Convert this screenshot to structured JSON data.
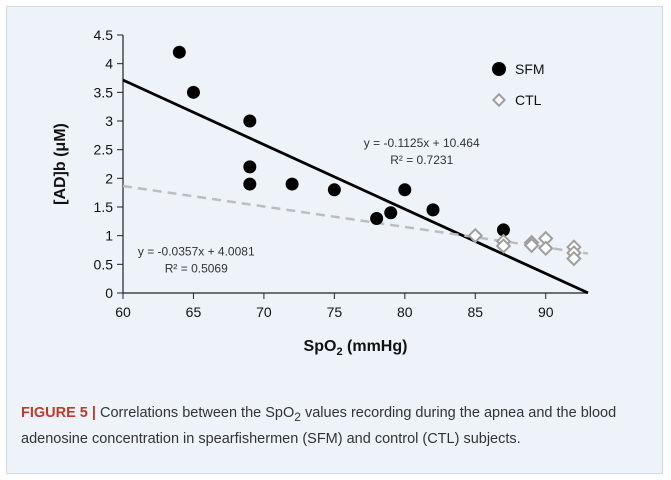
{
  "chart_data": {
    "type": "scatter",
    "xlabel": "SpO2 (mmHg)",
    "xlabel_main": "SpO",
    "xlabel_sub": "2",
    "xlabel_rest": " (mmHg)",
    "ylabel": "[AD]b (μM)",
    "xlim": [
      60,
      93
    ],
    "ylim": [
      0,
      4.5
    ],
    "x_ticks": [
      60,
      65,
      70,
      75,
      80,
      85,
      90
    ],
    "y_ticks": [
      0,
      0.5,
      1,
      1.5,
      2,
      2.5,
      3,
      3.5,
      4,
      4.5
    ],
    "x_tick_labels": [
      "60",
      "65",
      "70",
      "75",
      "80",
      "85",
      "90"
    ],
    "y_tick_labels": [
      "0",
      "0.5",
      "1",
      "1.5",
      "2",
      "2.5",
      "3",
      "3.5",
      "4",
      "4.5"
    ],
    "legend_position": "top-right",
    "series": [
      {
        "name": "SFM",
        "marker": "filled-circle",
        "color": "#000000",
        "points": [
          {
            "x": 64,
            "y": 4.2
          },
          {
            "x": 65,
            "y": 3.5
          },
          {
            "x": 69,
            "y": 3.0
          },
          {
            "x": 69,
            "y": 2.2
          },
          {
            "x": 69,
            "y": 1.9
          },
          {
            "x": 72,
            "y": 1.9
          },
          {
            "x": 75,
            "y": 1.8
          },
          {
            "x": 78,
            "y": 1.3
          },
          {
            "x": 79,
            "y": 1.4
          },
          {
            "x": 80,
            "y": 1.8
          },
          {
            "x": 82,
            "y": 1.45
          },
          {
            "x": 87,
            "y": 1.1
          }
        ],
        "trendline": {
          "slope": -0.1125,
          "intercept": 10.464,
          "style": "solid",
          "color": "#000000",
          "equation": "y = -0.1125x + 10.464",
          "r2": "R² = 0.7231"
        }
      },
      {
        "name": "CTL",
        "marker": "open-diamond",
        "color": "#9e9e9e",
        "points": [
          {
            "x": 85,
            "y": 1.0
          },
          {
            "x": 87,
            "y": 0.9
          },
          {
            "x": 87,
            "y": 0.82
          },
          {
            "x": 89,
            "y": 0.88
          },
          {
            "x": 89,
            "y": 0.83
          },
          {
            "x": 90,
            "y": 0.95
          },
          {
            "x": 90,
            "y": 0.78
          },
          {
            "x": 92,
            "y": 0.8
          },
          {
            "x": 92,
            "y": 0.7
          },
          {
            "x": 92,
            "y": 0.6
          }
        ],
        "trendline": {
          "slope": -0.0357,
          "intercept": 4.0081,
          "style": "dashed",
          "color": "#bdbdbd",
          "equation": "y = -0.0357x + 4.0081",
          "r2": "R² = 0.5069"
        }
      }
    ]
  },
  "caption": {
    "label": "FIGURE 5 |",
    "text_1": " Correlations between the SpO",
    "sub": "2",
    "text_2": " values recording during the apnea and the blood adenosine concentration in spearfishermen (SFM) and control (CTL) subjects."
  }
}
